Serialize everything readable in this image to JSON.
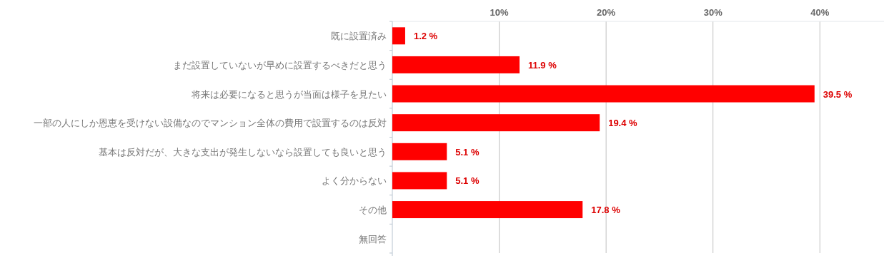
{
  "chart_data": {
    "type": "bar",
    "orientation": "horizontal",
    "categories": [
      "既に設置済み",
      "まだ設置していないが早めに設置するべきだと思う",
      "将来は必要になると思うが当面は様子を見たい",
      "一部の人にしか恩恵を受けない設備なのでマンション全体の費用で設置するのは反対",
      "基本は反対だが、大きな支出が発生しないなら設置しても良いと思う",
      "よく分からない",
      "その他",
      "無回答"
    ],
    "values": [
      1.2,
      11.9,
      39.5,
      19.4,
      5.1,
      5.1,
      17.8,
      null
    ],
    "value_labels": [
      "1.2 %",
      "11.9 %",
      "39.5 %",
      "19.4 %",
      "5.1 %",
      "5.1 %",
      "17.8 %",
      null
    ],
    "color": "#ff0000",
    "x2lim": [
      0,
      46
    ],
    "x2ticks": [
      {
        "value": 10,
        "label": "10%"
      },
      {
        "value": 20,
        "label": "20%"
      },
      {
        "value": 30,
        "label": "30%"
      },
      {
        "value": 40,
        "label": "40%"
      }
    ],
    "grid": "x"
  }
}
